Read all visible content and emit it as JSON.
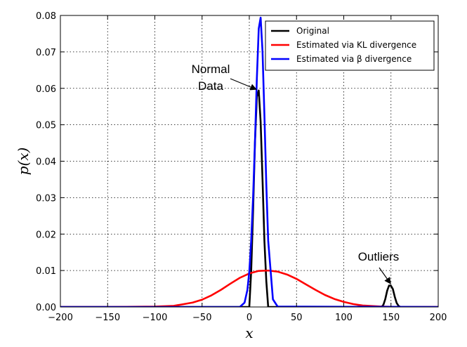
{
  "chart_data": {
    "type": "line",
    "xlabel": "x",
    "ylabel": "p(x)",
    "xlim": [
      -200,
      200
    ],
    "ylim": [
      0,
      0.08
    ],
    "x_ticks": [
      -200,
      -150,
      -100,
      -50,
      0,
      50,
      100,
      150,
      200
    ],
    "x_tick_labels": [
      "−200",
      "−150",
      "−100",
      "−50",
      "0",
      "50",
      "100",
      "150",
      "200"
    ],
    "y_ticks": [
      0,
      0.01,
      0.02,
      0.03,
      0.04,
      0.05,
      0.06,
      0.07,
      0.08
    ],
    "y_tick_labels": [
      "0.00",
      "0.01",
      "0.02",
      "0.03",
      "0.04",
      "0.05",
      "0.06",
      "0.07",
      "0.08"
    ],
    "grid": true,
    "legend_position": "top-right",
    "series": [
      {
        "name": "Original",
        "color": "#000000",
        "x": [
          -200,
          0,
          2,
          4,
          6,
          8,
          10,
          12,
          14,
          16,
          18,
          20,
          140,
          142,
          144,
          146,
          148,
          150,
          152,
          154,
          156,
          158,
          160,
          200
        ],
        "y": [
          0,
          0,
          0.0099,
          0.0263,
          0.0451,
          0.0577,
          0.0594,
          0.0508,
          0.035,
          0.0181,
          0.0071,
          0,
          0,
          0.0006,
          0.0022,
          0.0045,
          0.0059,
          0.0058,
          0.0049,
          0.0028,
          0.0011,
          0.0003,
          0,
          0
        ]
      },
      {
        "name": "Estimated via KL divergence",
        "color": "#ff0000",
        "x": [
          -200,
          -150,
          -100,
          -80,
          -60,
          -50,
          -40,
          -30,
          -20,
          -10,
          0,
          10,
          20,
          30,
          40,
          50,
          60,
          70,
          80,
          90,
          100,
          110,
          120,
          140,
          160,
          200
        ],
        "y": [
          0,
          0,
          0.0001,
          0.0003,
          0.0012,
          0.002,
          0.0032,
          0.0047,
          0.0064,
          0.008,
          0.0092,
          0.0099,
          0.01,
          0.0097,
          0.0089,
          0.0077,
          0.0062,
          0.0047,
          0.0033,
          0.0022,
          0.0014,
          0.0008,
          0.0004,
          0.0001,
          0,
          0
        ]
      },
      {
        "name": "Estimated via β divergence",
        "color": "#0000ff",
        "x": [
          -200,
          -10,
          -5,
          -2,
          0,
          2,
          4,
          6,
          8,
          10,
          12,
          14,
          16,
          18,
          20,
          25,
          30,
          200
        ],
        "y": [
          0,
          0,
          0.0012,
          0.0047,
          0.0097,
          0.0181,
          0.03,
          0.0453,
          0.0627,
          0.0764,
          0.0794,
          0.0701,
          0.0526,
          0.0336,
          0.0182,
          0.0021,
          0.0001,
          0
        ]
      }
    ],
    "annotations": [
      {
        "id": "normal",
        "lines": [
          "Normal",
          "Data"
        ],
        "target": [
          8,
          0.06
        ]
      },
      {
        "id": "outliers",
        "lines": [
          "Outliers"
        ],
        "target": [
          150,
          0.0065
        ]
      }
    ]
  }
}
